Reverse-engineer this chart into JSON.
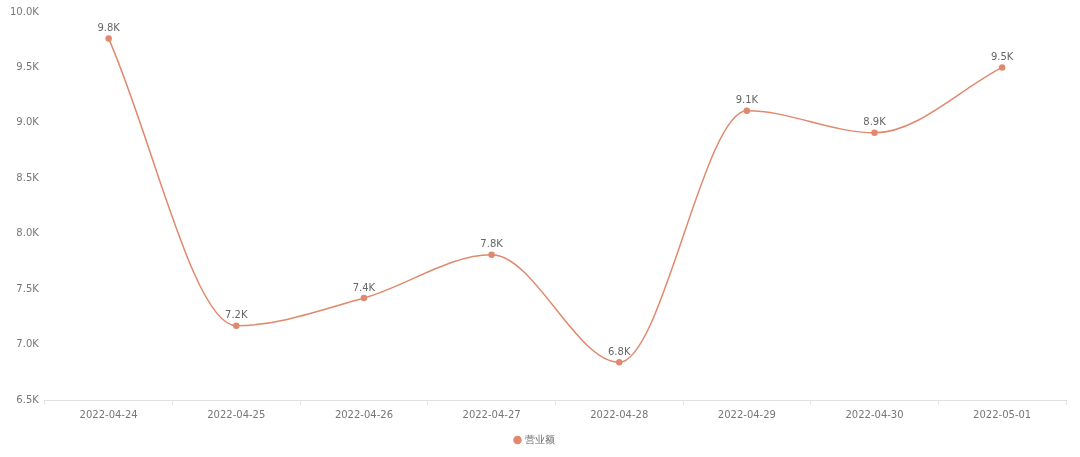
{
  "chart_data": {
    "type": "line",
    "categories": [
      "2022-04-24",
      "2022-04-25",
      "2022-04-26",
      "2022-04-27",
      "2022-04-28",
      "2022-04-29",
      "2022-04-30",
      "2022-05-01"
    ],
    "series": [
      {
        "name": "营业额",
        "color": "#e0896e",
        "values": [
          9760,
          7170,
          7420,
          7810,
          6840,
          9110,
          8910,
          9500
        ],
        "value_labels": [
          "9.8K",
          "7.2K",
          "7.4K",
          "7.8K",
          "6.8K",
          "9.1K",
          "8.9K",
          "9.5K"
        ]
      }
    ],
    "ylim": [
      6500,
      10000
    ],
    "yticks": [
      {
        "value": 6500,
        "label": "6.5K"
      },
      {
        "value": 7000,
        "label": "7.0K"
      },
      {
        "value": 7500,
        "label": "7.5K"
      },
      {
        "value": 8000,
        "label": "8.0K"
      },
      {
        "value": 8500,
        "label": "8.5K"
      },
      {
        "value": 9000,
        "label": "9.0K"
      },
      {
        "value": 9500,
        "label": "9.5K"
      },
      {
        "value": 10000,
        "label": "10.0K"
      }
    ],
    "grid": false,
    "legend": "bottom",
    "marker": "circle",
    "line_style": "solid"
  }
}
